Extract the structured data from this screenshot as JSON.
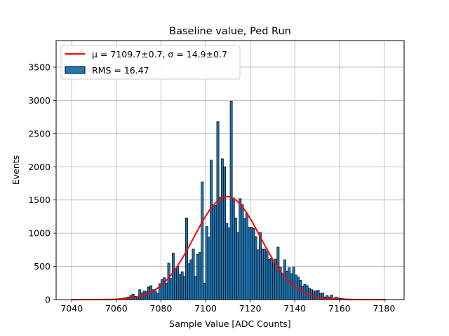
{
  "chart_data": {
    "type": "bar",
    "title": "Baseline value, Ped Run",
    "xlabel": "Sample Value [ADC Counts]",
    "ylabel": "Events",
    "xlim": [
      7033,
      7189
    ],
    "ylim": [
      0,
      3900
    ],
    "xticks": [
      7040,
      7060,
      7080,
      7100,
      7120,
      7140,
      7160,
      7180
    ],
    "yticks": [
      0,
      500,
      1000,
      1500,
      2000,
      2500,
      3000,
      3500
    ],
    "grid": true,
    "legend_position": "top-left",
    "histogram": {
      "name": "RMS = 16.47",
      "color": "#1f77b4",
      "edge_color": "#000000",
      "x": [
        7040,
        7041,
        7042,
        7043,
        7044,
        7045,
        7046,
        7047,
        7048,
        7049,
        7050,
        7051,
        7052,
        7053,
        7054,
        7055,
        7056,
        7057,
        7058,
        7059,
        7060,
        7061,
        7062,
        7063,
        7064,
        7065,
        7066,
        7067,
        7068,
        7069,
        7070,
        7071,
        7072,
        7073,
        7074,
        7075,
        7076,
        7077,
        7078,
        7079,
        7080,
        7081,
        7082,
        7083,
        7084,
        7085,
        7086,
        7087,
        7088,
        7089,
        7090,
        7091,
        7092,
        7093,
        7094,
        7095,
        7096,
        7097,
        7098,
        7099,
        7100,
        7101,
        7102,
        7103,
        7104,
        7105,
        7106,
        7107,
        7108,
        7109,
        7110,
        7111,
        7112,
        7113,
        7114,
        7115,
        7116,
        7117,
        7118,
        7119,
        7120,
        7121,
        7122,
        7123,
        7124,
        7125,
        7126,
        7127,
        7128,
        7129,
        7130,
        7131,
        7132,
        7133,
        7134,
        7135,
        7136,
        7137,
        7138,
        7139,
        7140,
        7141,
        7142,
        7143,
        7144,
        7145,
        7146,
        7147,
        7148,
        7149,
        7150,
        7151,
        7152,
        7153,
        7154,
        7155,
        7156,
        7157,
        7158,
        7159,
        7160,
        7161,
        7162,
        7163,
        7164,
        7165,
        7166,
        7167,
        7168,
        7169,
        7170,
        7171,
        7172,
        7173,
        7174,
        7175,
        7176,
        7177,
        7178,
        7179,
        7180,
        7181
      ],
      "values": [
        0,
        0,
        0,
        0,
        0,
        0,
        0,
        0,
        0,
        0,
        0,
        0,
        0,
        0,
        0,
        0,
        3,
        5,
        5,
        8,
        10,
        15,
        20,
        25,
        30,
        40,
        60,
        80,
        50,
        40,
        150,
        100,
        130,
        120,
        190,
        210,
        150,
        130,
        90,
        240,
        300,
        330,
        250,
        550,
        320,
        700,
        450,
        500,
        380,
        420,
        350,
        1230,
        540,
        600,
        760,
        350,
        680,
        710,
        1770,
        250,
        1100,
        940,
        2100,
        1400,
        1420,
        2680,
        1540,
        2120,
        2000,
        1150,
        1080,
        2990,
        1530,
        1230,
        1010,
        1520,
        1430,
        1220,
        1300,
        1090,
        1090,
        1070,
        950,
        750,
        1010,
        760,
        760,
        730,
        610,
        620,
        560,
        610,
        790,
        490,
        380,
        600,
        430,
        480,
        390,
        490,
        370,
        340,
        290,
        200,
        230,
        210,
        170,
        150,
        130,
        130,
        140,
        90,
        100,
        40,
        60,
        40,
        70,
        20,
        40,
        25,
        20,
        15,
        10,
        10,
        8,
        5,
        5,
        3,
        3,
        2,
        2,
        1,
        1,
        0,
        0,
        0,
        0,
        0,
        0,
        0,
        0,
        0
      ]
    },
    "fit": {
      "name": "μ = 7109.7±0.7, σ = 14.9±0.7",
      "color": "#ff0000",
      "mu": 7109.7,
      "sigma": 14.9,
      "amplitude": 1550,
      "x_range": [
        7040,
        7181
      ]
    }
  }
}
